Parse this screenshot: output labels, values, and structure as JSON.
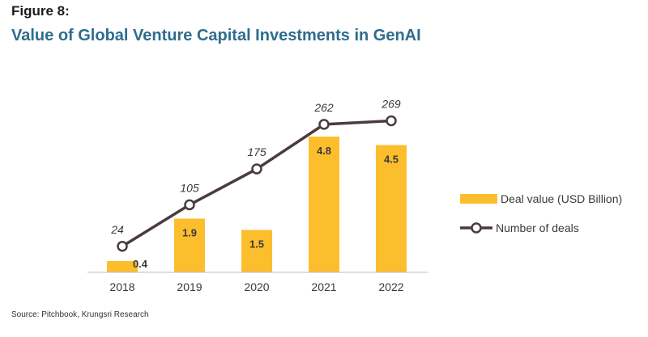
{
  "header": {
    "figure_label": "Figure 8:",
    "title": "Value of Global Venture Capital Investments in GenAI"
  },
  "source": "Source: Pitchbook, Krungsri Research",
  "legend": {
    "bar_label": "Deal value (USD Billion)",
    "line_label": "Number of deals"
  },
  "colors": {
    "bar": "#FDBE2D",
    "line": "#4a3c3c",
    "title": "#2e6d8e",
    "axis": "#bfbfbf"
  },
  "chart_data": {
    "type": "bar",
    "title": "Value of Global Venture Capital Investments in GenAI",
    "categories": [
      "2018",
      "2019",
      "2020",
      "2021",
      "2022"
    ],
    "series": [
      {
        "name": "Deal value (USD Billion)",
        "type": "bar",
        "values": [
          0.4,
          1.9,
          1.5,
          4.8,
          4.5
        ]
      },
      {
        "name": "Number of deals",
        "type": "line",
        "values": [
          24,
          105,
          175,
          262,
          269
        ]
      }
    ],
    "legend_position": "right",
    "grid": false
  }
}
